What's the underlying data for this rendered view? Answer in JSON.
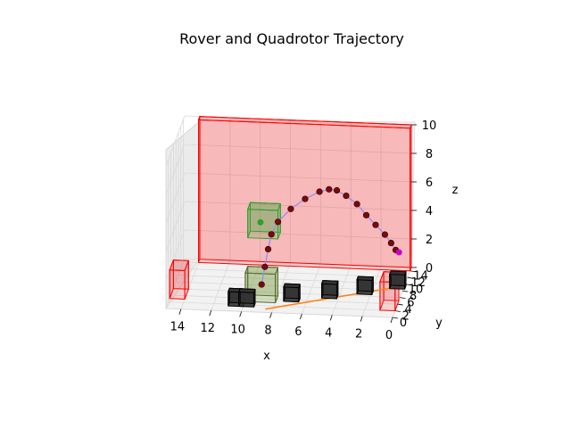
{
  "chart_data": {
    "type": "scatter",
    "title": "Rover and Quadrotor Trajectory",
    "xlabel": "x",
    "ylabel": "y",
    "zlabel": "z",
    "xlim": [
      0,
      15
    ],
    "ylim": [
      0,
      15
    ],
    "zlim": [
      0,
      10
    ],
    "x_ticks": [
      "14",
      "12",
      "10",
      "8",
      "6",
      "4",
      "2",
      "0"
    ],
    "y_ticks": [
      "0",
      "2",
      "4",
      "6",
      "8",
      "10",
      "12",
      "14"
    ],
    "z_ticks": [
      "0",
      "2",
      "4",
      "6",
      "8",
      "10"
    ],
    "grid": true,
    "colors": {
      "obstacle": "#ff0000",
      "goal_box": "#2ca02c",
      "start_box": "#6b8e23",
      "rover_path": "#ff7f0e",
      "quad_path": "#8c8cff",
      "quad_points": "#7a0a0a",
      "rover_box": "#000000"
    },
    "obstacles": [
      {
        "name": "back-wall",
        "x": [
          0,
          14
        ],
        "y": [
          14,
          15
        ],
        "z": [
          0,
          10
        ]
      },
      {
        "name": "left-pillar",
        "x": [
          14,
          15
        ],
        "y": [
          3,
          6
        ],
        "z": [
          0,
          2
        ]
      },
      {
        "name": "right-pillar",
        "x": [
          0,
          1
        ],
        "y": [
          2,
          5
        ],
        "z": [
          0,
          2
        ]
      }
    ],
    "goal_box": {
      "x": [
        8,
        10
      ],
      "y": [
        5,
        7
      ],
      "z": [
        4,
        6
      ]
    },
    "start_box": {
      "x": [
        8,
        10
      ],
      "y": [
        3,
        5
      ],
      "z": [
        0,
        2
      ]
    },
    "quad_trajectory": [
      {
        "x": 9.0,
        "y": 4.0,
        "z": 1.0
      },
      {
        "x": 8.8,
        "y": 4.2,
        "z": 2.2
      },
      {
        "x": 8.6,
        "y": 4.4,
        "z": 3.4
      },
      {
        "x": 8.4,
        "y": 4.6,
        "z": 4.4
      },
      {
        "x": 8.0,
        "y": 5.0,
        "z": 5.2
      },
      {
        "x": 7.2,
        "y": 5.6,
        "z": 6.0
      },
      {
        "x": 6.3,
        "y": 6.2,
        "z": 6.6
      },
      {
        "x": 5.4,
        "y": 6.8,
        "z": 7.0
      },
      {
        "x": 4.8,
        "y": 7.2,
        "z": 7.1
      },
      {
        "x": 4.3,
        "y": 7.4,
        "z": 7.0
      },
      {
        "x": 3.7,
        "y": 7.6,
        "z": 6.6
      },
      {
        "x": 3.0,
        "y": 7.8,
        "z": 6.0
      },
      {
        "x": 2.4,
        "y": 8.0,
        "z": 5.2
      },
      {
        "x": 1.8,
        "y": 8.2,
        "z": 4.5
      },
      {
        "x": 1.2,
        "y": 8.4,
        "z": 3.8
      },
      {
        "x": 0.8,
        "y": 8.5,
        "z": 3.2
      },
      {
        "x": 0.5,
        "y": 8.6,
        "z": 2.7
      }
    ],
    "rover_trajectory": [
      {
        "x": 8.5,
        "y": 1.0,
        "z": 0.0
      },
      {
        "x": 7.5,
        "y": 2.0,
        "z": 0.0
      },
      {
        "x": 6.5,
        "y": 3.0,
        "z": 0.0
      },
      {
        "x": 5.0,
        "y": 4.5,
        "z": 0.0
      },
      {
        "x": 3.5,
        "y": 6.0,
        "z": 0.0
      },
      {
        "x": 2.0,
        "y": 7.5,
        "z": 0.0
      },
      {
        "x": 1.0,
        "y": 8.5,
        "z": 0.0
      },
      {
        "x": 0.2,
        "y": 9.5,
        "z": 0.0
      }
    ],
    "rover_boxes": [
      {
        "x": 10.5,
        "y": 2.0,
        "z": 0.0
      },
      {
        "x": 9.8,
        "y": 2.0,
        "z": 0.0
      },
      {
        "x": 7.0,
        "y": 4.0,
        "z": 0.0
      },
      {
        "x": 4.6,
        "y": 5.4,
        "z": 0.0
      },
      {
        "x": 2.4,
        "y": 7.0,
        "z": 0.0
      },
      {
        "x": 0.4,
        "y": 9.0,
        "z": 0.0
      }
    ],
    "markers": [
      {
        "name": "start-dot",
        "x": 9.2,
        "y": 5.5,
        "z": 5.0,
        "color": "#2ca02c"
      },
      {
        "name": "end-dot",
        "x": 0.3,
        "y": 8.8,
        "z": 2.5,
        "color": "#cc00cc"
      }
    ]
  }
}
